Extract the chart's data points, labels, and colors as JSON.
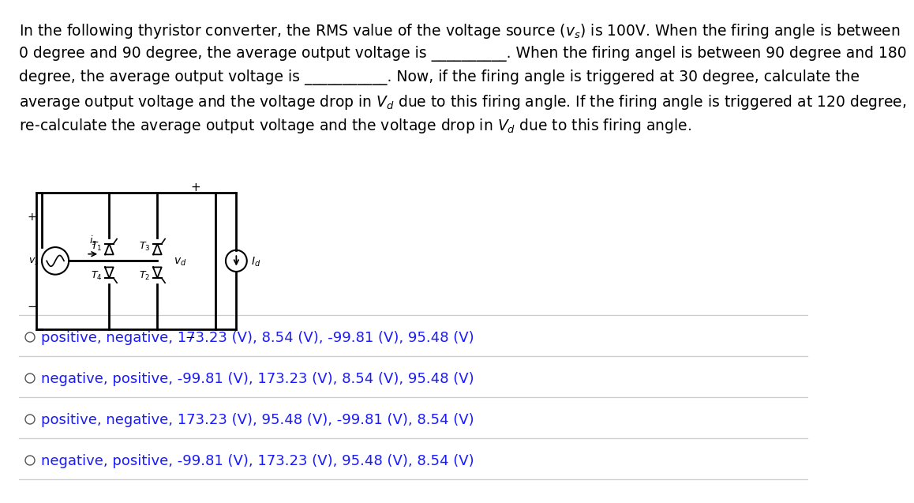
{
  "bg_color": "#ffffff",
  "text_color": "#000000",
  "option_color": "#1a1aff",
  "line_color": "#cccccc",
  "font_size_text": 13.5,
  "font_size_options": 13.0,
  "question_lines": [
    "In the following thyristor converter, the RMS value of the voltage source ($v_s$) is 100V. When the firing angle is between",
    "0 degree and 90 degree, the average output voltage is __________. When the firing angel is between 90 degree and 180",
    "degree, the average output voltage is ___________. Now, if the firing angle is triggered at 30 degree, calculate the",
    "average output voltage and the voltage drop in $V_d$ due to this firing angle. If the firing angle is triggered at 120 degree,",
    "re-calculate the average output voltage and the voltage drop in $V_d$ due to this firing angle."
  ],
  "options": [
    "positive, negative, 173.23 (V), 8.54 (V), -99.81 (V), 95.48 (V)",
    "negative, positive, -99.81 (V), 173.23 (V), 8.54 (V), 95.48 (V)",
    "positive, negative, 173.23 (V), 95.48 (V), -99.81 (V), 8.54 (V)",
    "negative, positive, -99.81 (V), 173.23 (V), 95.48 (V), 8.54 (V)"
  ]
}
